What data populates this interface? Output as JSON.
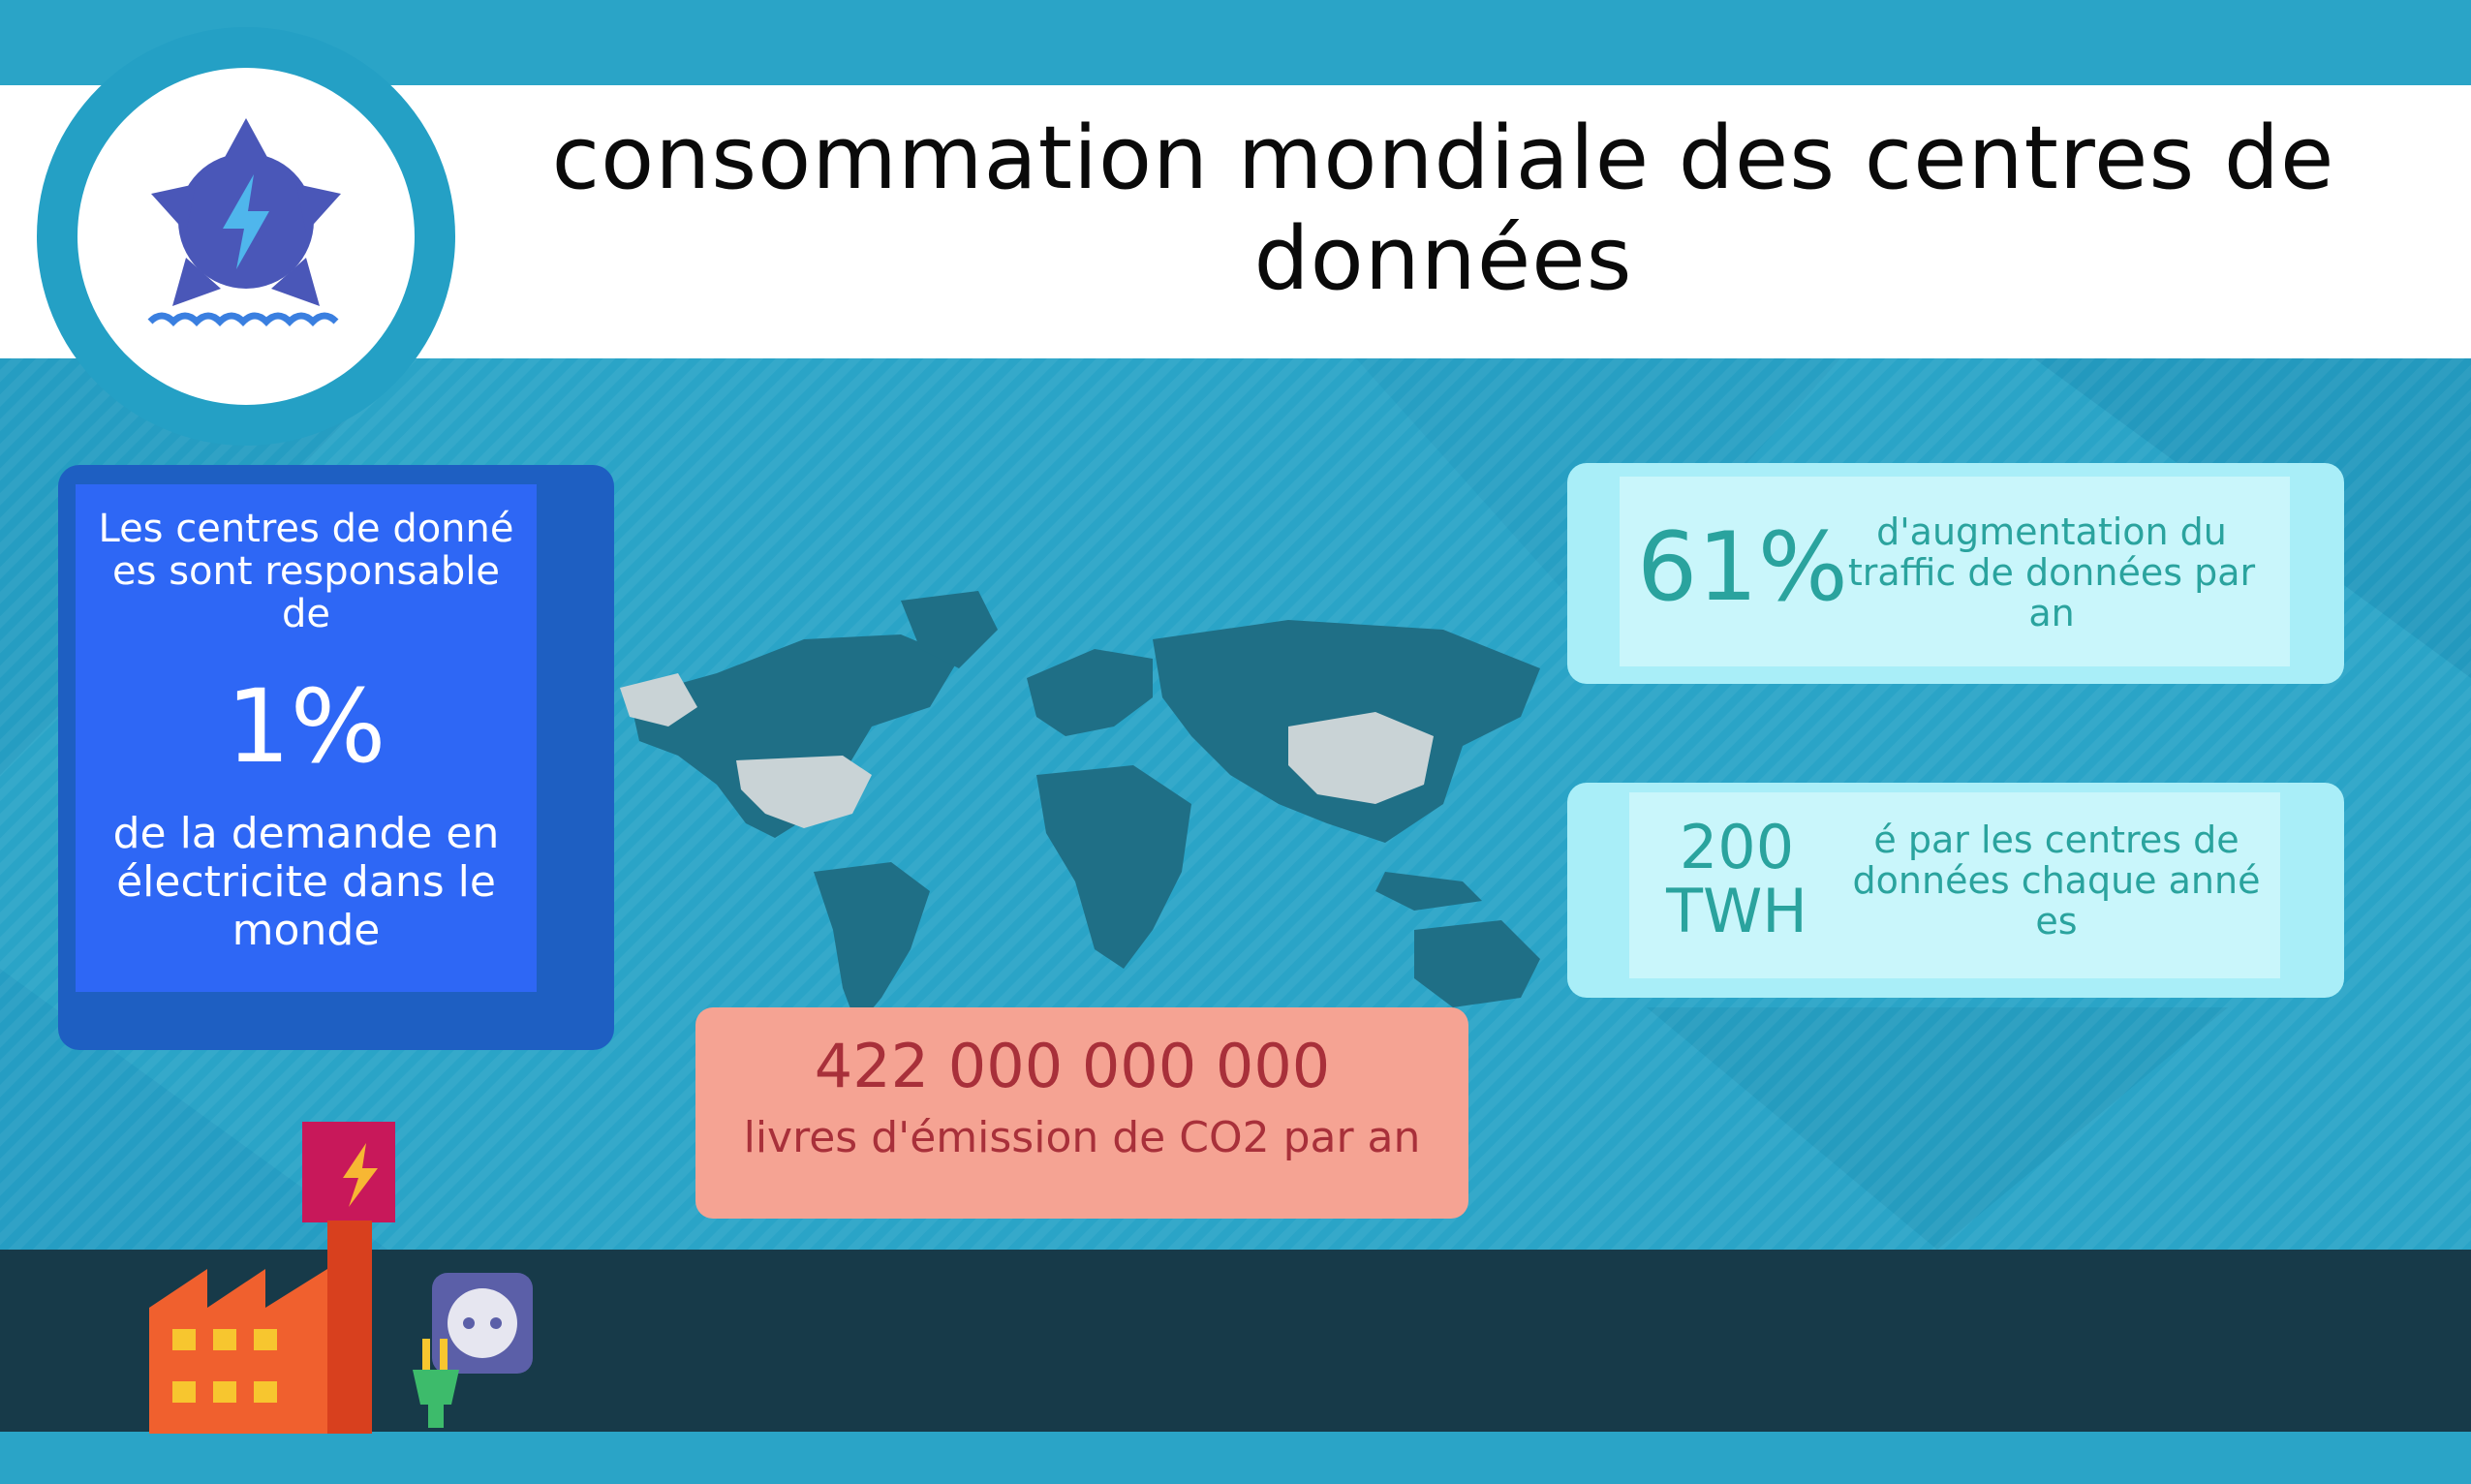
{
  "header": {
    "title": "consommation mondiale des centres de données",
    "logo_icon": "water-turbine-energy-icon"
  },
  "left_card": {
    "intro": "Les centres de donné es sont responsable de",
    "percent": "1%",
    "outro": "de la demande en électricite dans le monde"
  },
  "stats": {
    "traffic": {
      "value": "61%",
      "text": "d'augmentation du traffic de données par an"
    },
    "energy": {
      "value": "200 TWH",
      "text": "é par les centres de données chaque anné es"
    }
  },
  "co2": {
    "value": "422 000 000 000",
    "text": "livres d'émission de CO2 par an"
  },
  "illustrations": {
    "map": "world-map-icon",
    "factory": "factory-icon",
    "plug": "power-plug-socket-icon"
  },
  "colors": {
    "background": "#2aa4c7",
    "left_card": "#2e67f5",
    "stat_card": "#c9f6fb",
    "co2_card": "#f5a393",
    "bottom_band": "#173a49"
  }
}
